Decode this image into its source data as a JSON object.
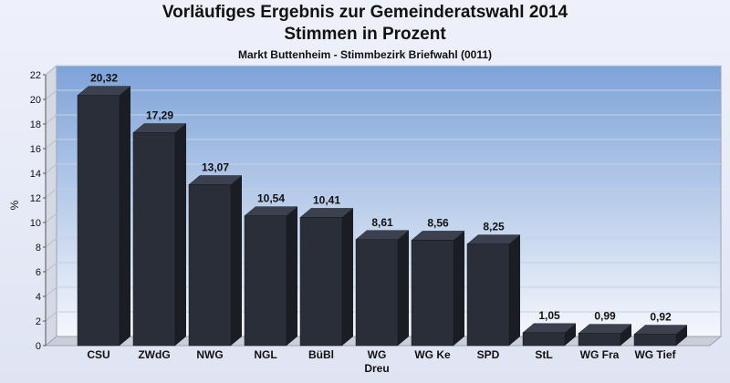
{
  "chart_data": {
    "type": "bar",
    "title": "Vorläufiges Ergebnis zur Gemeinderatswahl 2014",
    "subtitle": "Stimmen in Prozent",
    "caption": "Markt Buttenheim - Stimmbezirk Briefwahl (0011)",
    "xlabel": "",
    "ylabel": "%",
    "ylim": [
      0,
      22
    ],
    "yticks": [
      0,
      2,
      4,
      6,
      8,
      10,
      12,
      14,
      16,
      18,
      20,
      22
    ],
    "grid": true,
    "legend": "none",
    "categories": [
      "CSU",
      "ZWdG",
      "NWG",
      "NGL",
      "BüBl",
      "WG Dreu",
      "WG Ke",
      "SPD",
      "StL",
      "WG Fra",
      "WG Tief"
    ],
    "category_lines": [
      [
        "CSU"
      ],
      [
        "ZWdG"
      ],
      [
        "NWG"
      ],
      [
        "NGL"
      ],
      [
        "BüBl"
      ],
      [
        "WG",
        "Dreu"
      ],
      [
        "WG Ke"
      ],
      [
        "SPD"
      ],
      [
        "StL"
      ],
      [
        "WG Fra"
      ],
      [
        "WG Tief"
      ]
    ],
    "values": [
      20.32,
      17.29,
      13.07,
      10.54,
      10.41,
      8.61,
      8.56,
      8.25,
      1.05,
      0.99,
      0.92
    ],
    "value_labels": [
      "20,32",
      "17,29",
      "13,07",
      "10,54",
      "10,41",
      "8,61",
      "8,56",
      "8,25",
      "1,05",
      "0,99",
      "0,92"
    ],
    "colors": {
      "bar_front": "#2a2e38",
      "bar_side": "#1a1d24",
      "bar_top": "#3c4150",
      "plot_top": "#7ea3d8",
      "plot_bottom": "#f5f7fc",
      "text": "#111111"
    }
  }
}
